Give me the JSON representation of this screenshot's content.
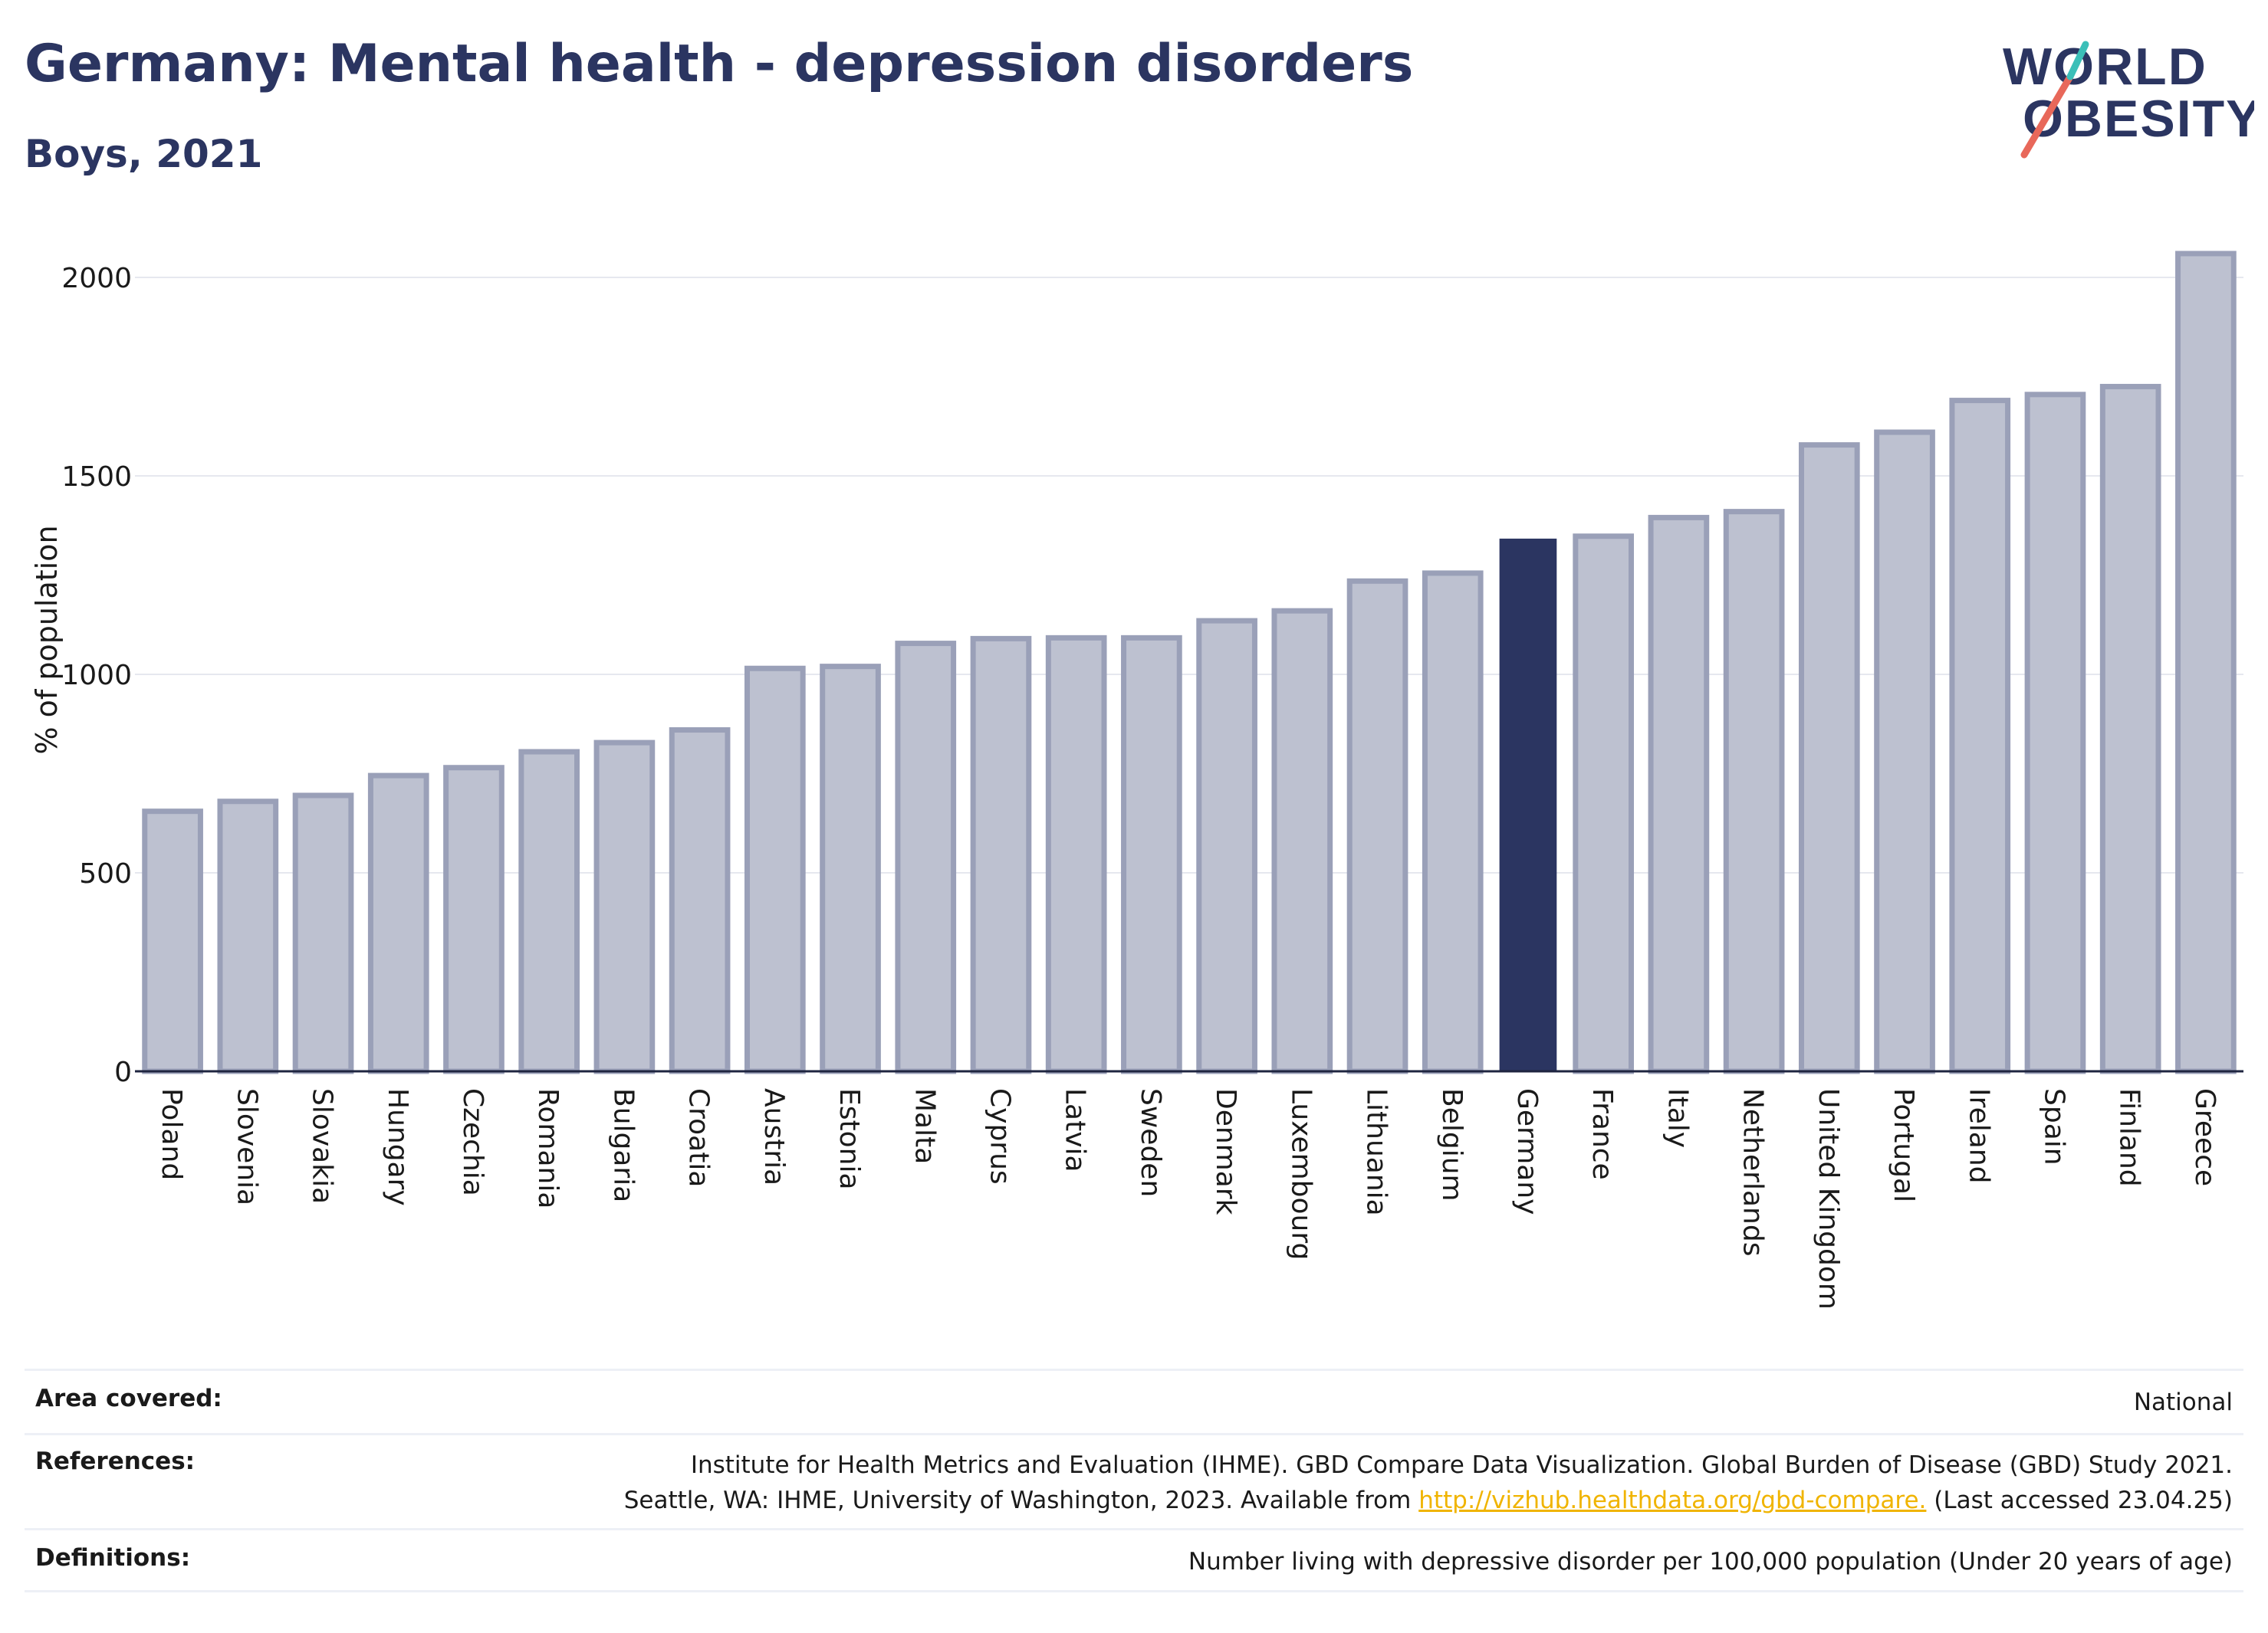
{
  "header": {
    "title": "Germany: Mental health - depression disorders",
    "subtitle": "Boys, 2021"
  },
  "logo": {
    "line1": "WORLD",
    "line2": "OBESITY",
    "colors": {
      "text": "#2b3561",
      "slash_red": "#e8685a",
      "slash_teal": "#3bbfb8"
    }
  },
  "colors": {
    "highlight": "#2b3561",
    "bar_fill": "#bdc1d0",
    "bar_stroke": "#9aa0b8",
    "grid": "#e6e8ef",
    "axis": "#1f2540"
  },
  "chart_data": {
    "type": "bar",
    "ylabel": "% of population",
    "xlabel": "",
    "ylim": [
      0,
      2100
    ],
    "yticks": [
      0,
      500,
      1000,
      1500,
      2000
    ],
    "grid": true,
    "highlight": "Germany",
    "categories": [
      "Poland",
      "Slovenia",
      "Slovakia",
      "Hungary",
      "Czechia",
      "Romania",
      "Bulgaria",
      "Croatia",
      "Austria",
      "Estonia",
      "Malta",
      "Cyprus",
      "Latvia",
      "Sweden",
      "Denmark",
      "Luxembourg",
      "Lithuania",
      "Belgium",
      "Germany",
      "France",
      "Italy",
      "Netherlands",
      "United Kingdom",
      "Portugal",
      "Ireland",
      "Spain",
      "Finland",
      "Greece"
    ],
    "values": [
      655,
      680,
      695,
      745,
      765,
      805,
      828,
      860,
      1015,
      1020,
      1078,
      1090,
      1092,
      1092,
      1135,
      1160,
      1235,
      1255,
      1340,
      1348,
      1395,
      1410,
      1578,
      1610,
      1690,
      1705,
      1725,
      2060
    ]
  },
  "info": {
    "area_label": "Area covered:",
    "area_value": "National",
    "refs_label": "References:",
    "refs_line1": "Institute for Health Metrics and Evaluation (IHME). GBD Compare Data Visualization. Global Burden of Disease (GBD) Study 2021.",
    "refs_line2_prefix": "Seattle, WA: IHME, University of Washington, 2023. Available from ",
    "refs_link": "http://vizhub.healthdata.org/gbd-compare.",
    "refs_line2_suffix": " (Last accessed 23.04.25)",
    "defs_label": "Definitions:",
    "defs_value": "Number living with depressive disorder per 100,000 population (Under 20 years of age)"
  }
}
